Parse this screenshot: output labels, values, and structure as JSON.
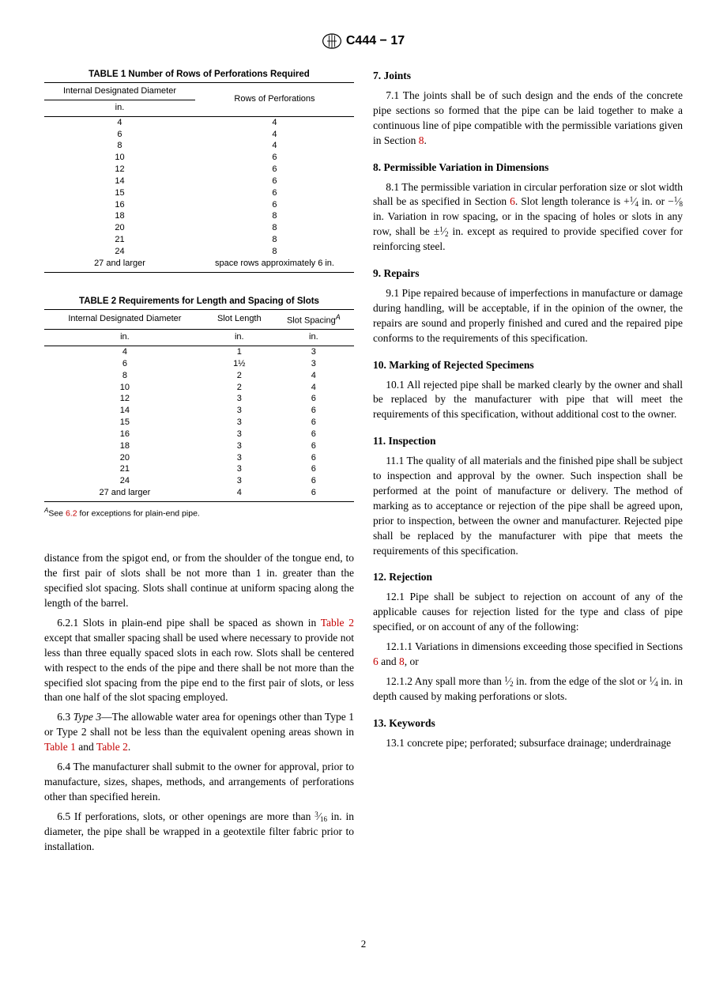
{
  "header": {
    "docId": "C444 − 17"
  },
  "table1": {
    "title": "TABLE 1 Number of Rows of Perforations Required",
    "col1_header": "Internal Designated Diameter",
    "col2_header": "Rows of Perforations",
    "col1_unit": "in.",
    "rows": [
      {
        "d": "4",
        "r": "4"
      },
      {
        "d": "6",
        "r": "4"
      },
      {
        "d": "8",
        "r": "4"
      },
      {
        "d": "10",
        "r": "6"
      },
      {
        "d": "12",
        "r": "6"
      },
      {
        "d": "14",
        "r": "6"
      },
      {
        "d": "15",
        "r": "6"
      },
      {
        "d": "16",
        "r": "6"
      },
      {
        "d": "18",
        "r": "8"
      },
      {
        "d": "20",
        "r": "8"
      },
      {
        "d": "21",
        "r": "8"
      },
      {
        "d": "24",
        "r": "8"
      },
      {
        "d": "27 and larger",
        "r": "space rows approximately 6 in."
      }
    ]
  },
  "table2": {
    "title": "TABLE 2 Requirements for Length and Spacing of Slots",
    "col1_header": "Internal Designated Diameter",
    "col2_header": "Slot Length",
    "col3_header": "Slot Spacing",
    "col1_unit": "in.",
    "col2_unit": "in.",
    "col3_unit": "in.",
    "rows": [
      {
        "d": "4",
        "l": "1",
        "s": "3"
      },
      {
        "d": "6",
        "l": "1½",
        "s": "3"
      },
      {
        "d": "8",
        "l": "2",
        "s": "4"
      },
      {
        "d": "10",
        "l": "2",
        "s": "4"
      },
      {
        "d": "12",
        "l": "3",
        "s": "6"
      },
      {
        "d": "14",
        "l": "3",
        "s": "6"
      },
      {
        "d": "15",
        "l": "3",
        "s": "6"
      },
      {
        "d": "16",
        "l": "3",
        "s": "6"
      },
      {
        "d": "18",
        "l": "3",
        "s": "6"
      },
      {
        "d": "20",
        "l": "3",
        "s": "6"
      },
      {
        "d": "21",
        "l": "3",
        "s": "6"
      },
      {
        "d": "24",
        "l": "3",
        "s": "6"
      },
      {
        "d": "27 and larger",
        "l": "4",
        "s": "6"
      }
    ],
    "footnote_marker": "A",
    "footnote_prefix": "See ",
    "footnote_link": "6.2",
    "footnote_suffix": " for exceptions for plain-end pipe."
  },
  "left_body": {
    "p0": "distance from the spigot end, or from the shoulder of the tongue end, to the first pair of slots shall be not more than 1 in. greater than the specified slot spacing. Slots shall continue at uniform spacing along the length of the barrel.",
    "p1_num": "6.2.1 ",
    "p1a": "Slots in plain-end pipe shall be spaced as shown in ",
    "p1link": "Table 2",
    "p1b": " except that smaller spacing shall be used where necessary to provide not less than three equally spaced slots in each row. Slots shall be centered with respect to the ends of the pipe and there shall be not more than the specified slot spacing from the pipe end to the first pair of slots, or less than one half of the slot spacing employed.",
    "p2_num": "6.3 ",
    "p2_em": "Type 3",
    "p2a": "—The allowable water area for openings other than Type 1 or Type 2 shall not be less than the equivalent opening areas shown in ",
    "p2link1": "Table 1",
    "p2mid": " and ",
    "p2link2": "Table 2",
    "p2end": ".",
    "p3_num": "6.4 ",
    "p3": "The manufacturer shall submit to the owner for approval, prior to manufacture, sizes, shapes, methods, and arrangements of perforations other than specified herein.",
    "p4_num": "6.5 ",
    "p4a": "If perforations, slots, or other openings are more than ",
    "p4b": " in. in diameter, the pipe shall be wrapped in a geotextile filter fabric prior to installation."
  },
  "right_body": {
    "s7_head": "7.  Joints",
    "s7_1_num": "7.1 ",
    "s7_1a": "The joints shall be of such design and the ends of the concrete pipe sections so formed that the pipe can be laid together to make a continuous line of pipe compatible with the permissible variations given in Section ",
    "s7_1link": "8",
    "s7_1end": ".",
    "s8_head": "8.  Permissible Variation in Dimensions",
    "s8_1_num": "8.1 ",
    "s8_1a": "The permissible variation in circular perforation size or slot width shall be as specified in Section ",
    "s8_1link": "6",
    "s8_1b": ". Slot length tolerance is +",
    "s8_1c": " in. or −",
    "s8_1d": " in. Variation in row spacing, or in the spacing of holes or slots in any row, shall be ±",
    "s8_1e": " in. except as required to provide specified cover for reinforcing steel.",
    "s9_head": "9.  Repairs",
    "s9_1_num": "9.1 ",
    "s9_1": "Pipe repaired because of imperfections in manufacture or damage during handling, will be acceptable, if in the opinion of the owner, the repairs are sound and properly finished and cured and the repaired pipe conforms to the requirements of this specification.",
    "s10_head": "10.  Marking of Rejected Specimens",
    "s10_1_num": "10.1 ",
    "s10_1": "All rejected pipe shall be marked clearly by the owner and shall be replaced by the manufacturer with pipe that will meet the requirements of this specification, without additional cost to the owner.",
    "s11_head": "11.  Inspection",
    "s11_1_num": "11.1 ",
    "s11_1": "The quality of all materials and the finished pipe shall be subject to inspection and approval by the owner. Such inspection shall be performed at the point of manufacture or delivery. The method of marking as to acceptance or rejection of the pipe shall be agreed upon, prior to inspection, between the owner and manufacturer. Rejected pipe shall be replaced by the manufacturer with pipe that meets the requirements of this specification.",
    "s12_head": "12.  Rejection",
    "s12_1_num": "12.1 ",
    "s12_1": "Pipe shall be subject to rejection on account of any of the applicable causes for rejection listed for the type and class of pipe specified, or on account of any of the following:",
    "s12_1_1_num": "12.1.1 ",
    "s12_1_1a": "Variations in dimensions exceeding those specified in Sections ",
    "s12_1_1link1": "6",
    "s12_1_1mid": " and ",
    "s12_1_1link2": "8",
    "s12_1_1end": ", or",
    "s12_1_2_num": "12.1.2 ",
    "s12_1_2a": "Any spall more than ",
    "s12_1_2b": " in. from the edge of the slot or ",
    "s12_1_2c": " in. in depth caused by making perforations or slots.",
    "s13_head": "13.  Keywords",
    "s13_1_num": "13.1 ",
    "s13_1": "concrete pipe; perforated; subsurface drainage; underdrainage"
  },
  "pageNumber": "2"
}
